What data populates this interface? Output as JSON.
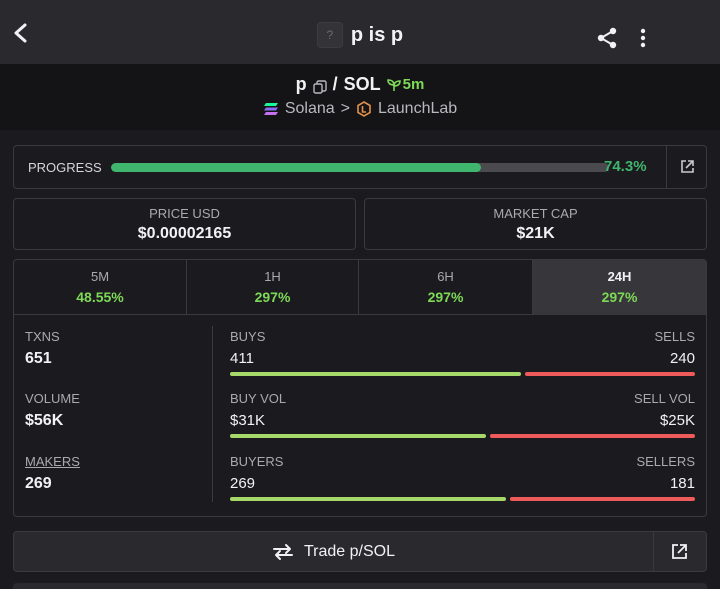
{
  "topbar": {
    "title": "p is p",
    "token_icon": "?"
  },
  "pair": {
    "base": "p",
    "quote": "SOL",
    "separator": "/",
    "age": "5m"
  },
  "chain": {
    "name": "Solana",
    "separator": ">",
    "dex": "LaunchLab"
  },
  "progress": {
    "label": "PROGRESS",
    "percent_text": "74.3%",
    "value": 74.3
  },
  "stats": {
    "price": {
      "label": "PRICE USD",
      "value": "$0.00002165"
    },
    "mcap": {
      "label": "MARKET CAP",
      "value": "$21K"
    }
  },
  "timeframes": [
    {
      "label": "5M",
      "change": "48.55%"
    },
    {
      "label": "1H",
      "change": "297%"
    },
    {
      "label": "6H",
      "change": "297%"
    },
    {
      "label": "24H",
      "change": "297%"
    }
  ],
  "metrics": {
    "txns": {
      "label": "TXNS",
      "value": "651"
    },
    "volume": {
      "label": "VOLUME",
      "value": "$56K"
    },
    "makers": {
      "label": "MAKERS",
      "value": "269"
    }
  },
  "breakdown": {
    "buys": {
      "left_label": "BUYS",
      "left_value": "411",
      "right_label": "SELLS",
      "right_value": "240",
      "ratio": 0.631
    },
    "vol": {
      "left_label": "BUY VOL",
      "left_value": "$31K",
      "right_label": "SELL VOL",
      "right_value": "$25K",
      "ratio": 0.554
    },
    "buyers": {
      "left_label": "BUYERS",
      "left_value": "269",
      "right_label": "SELLERS",
      "right_value": "181",
      "ratio": 0.598
    }
  },
  "trade": {
    "label": "Trade p/SOL"
  },
  "colors": {
    "positive": "#7ed957",
    "progress": "#3fb56d",
    "buy_bar": "#a6d86a",
    "sell_bar": "#ef5a5a"
  },
  "icons": [
    "back-arrow-icon",
    "share-icon",
    "more-vertical-icon",
    "copy-icon",
    "sprout-icon",
    "solana-icon",
    "launchlab-icon",
    "external-link-icon",
    "swap-arrows-icon"
  ]
}
